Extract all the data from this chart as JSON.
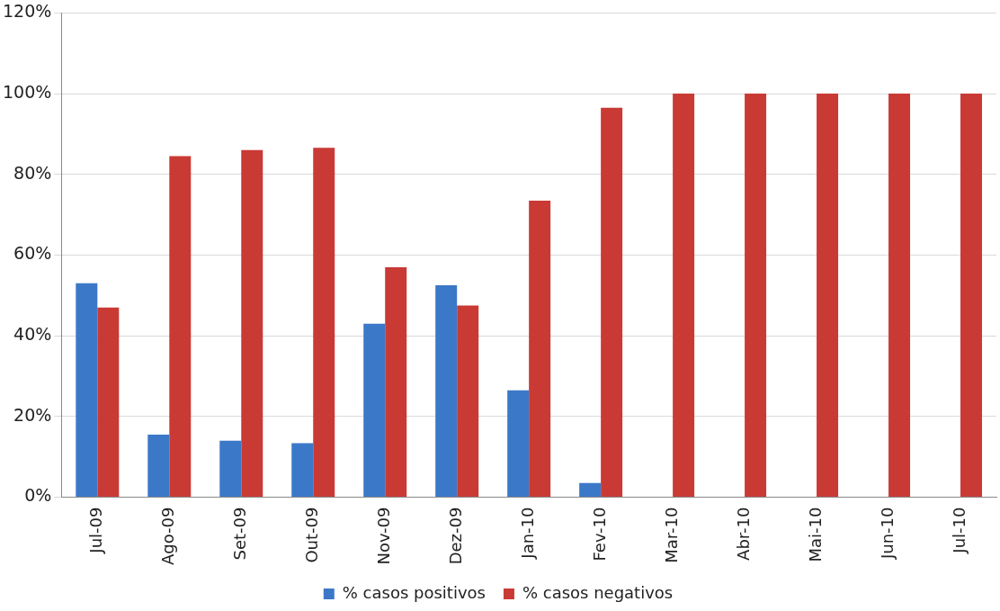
{
  "chart_data": {
    "type": "bar",
    "categories": [
      "Jul-09",
      "Ago-09",
      "Set-09",
      "Out-09",
      "Nov-09",
      "Dez-09",
      "Jan-10",
      "Fev-10",
      "Mar-10",
      "Abr-10",
      "Mai-10",
      "Jun-10",
      "Jul-10"
    ],
    "series": [
      {
        "name": "% casos positivos",
        "color": "#3c78c8",
        "values": [
          53,
          15.5,
          14,
          13.4,
          43,
          52.5,
          26.5,
          3.5,
          0,
          0,
          0,
          0,
          0
        ]
      },
      {
        "name": "% casos negativos",
        "color": "#c93a35",
        "values": [
          47,
          84.5,
          86,
          86.6,
          57,
          47.5,
          73.5,
          96.5,
          100,
          100,
          100,
          100,
          100
        ]
      }
    ],
    "ylim": [
      0,
      120
    ],
    "yticks": [
      {
        "value": 0,
        "label": "0%"
      },
      {
        "value": 20,
        "label": "20%"
      },
      {
        "value": 40,
        "label": "40%"
      },
      {
        "value": 60,
        "label": "60%"
      },
      {
        "value": 80,
        "label": "80%"
      },
      {
        "value": 100,
        "label": "100%"
      },
      {
        "value": 120,
        "label": "120%"
      }
    ],
    "grid": "y",
    "legend": "bottom"
  }
}
